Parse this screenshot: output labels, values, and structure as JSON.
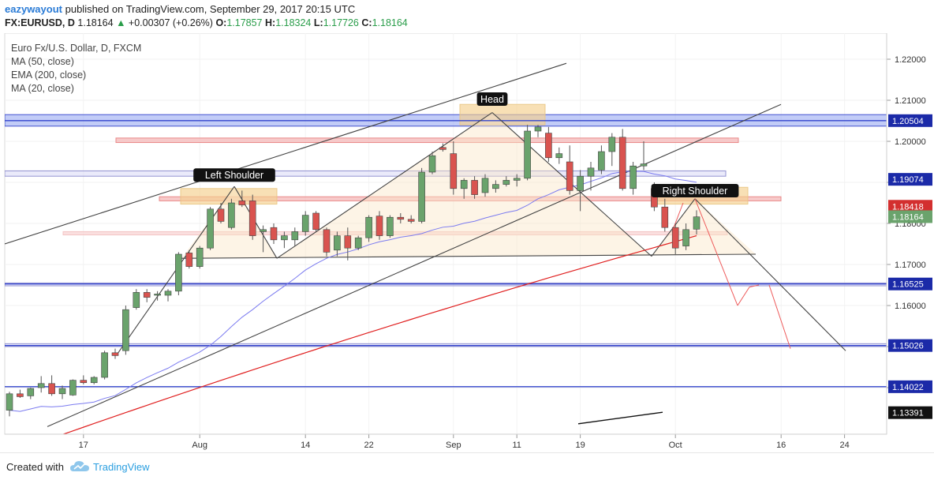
{
  "header": {
    "author": "eazywayout",
    "published_text": "published on TradingView.com, September 29, 2017 20:15 UTC",
    "symbol": "FX:EURUSD, D",
    "last": "1.18164",
    "change_arrow": "▲",
    "change": "+0.00307 (+0.26%)",
    "open_label": "O:",
    "open": "1.17857",
    "high_label": "H:",
    "high": "1.18324",
    "low_label": "L:",
    "low": "1.17726",
    "close_label": "C:",
    "close": "1.18164"
  },
  "footer": {
    "created_with": "Created with",
    "brand": "TradingView"
  },
  "colors": {
    "up": "#6aa36c",
    "down": "#d9534f",
    "ma50": "#7b7bf0",
    "ema200": "#e02020",
    "resistance_blue": "#3344cc",
    "zone_red": "#e88080",
    "zone_orange": "#e9c583"
  },
  "chart_data": {
    "type": "candlestick",
    "title": "Euro Fx/U.S. Dollar, D, FXCM",
    "indicators": [
      "MA (50, close)",
      "EMA (200, close)",
      "MA (20, close)"
    ],
    "ylim": [
      1.1296,
      1.2278
    ],
    "y_ticks": [
      1.22,
      1.21,
      1.2,
      1.19,
      1.18,
      1.17,
      1.16,
      1.15,
      1.14
    ],
    "x_ticks": [
      {
        "label": "17",
        "index": 7
      },
      {
        "label": "Aug",
        "index": 18
      },
      {
        "label": "14",
        "index": 28
      },
      {
        "label": "22",
        "index": 34
      },
      {
        "label": "Sep",
        "index": 42
      },
      {
        "label": "11",
        "index": 48
      },
      {
        "label": "19",
        "index": 54
      },
      {
        "label": "Oct",
        "index": 63
      },
      {
        "label": "16",
        "index": 73
      },
      {
        "label": "24",
        "index": 79
      }
    ],
    "price_labels": [
      {
        "value": 1.20504,
        "label": "1.20504",
        "color": "#1b2aa8"
      },
      {
        "value": 1.19074,
        "label": "1.19074",
        "color": "#1b2aa8"
      },
      {
        "value": 1.18418,
        "label": "1.18418",
        "color": "#d32f2f"
      },
      {
        "value": 1.18164,
        "label": "1.18164",
        "color": "#6aa36c"
      },
      {
        "value": 1.16525,
        "label": "1.16525",
        "color": "#1b2aa8"
      },
      {
        "value": 1.15026,
        "label": "1.15026",
        "color": "#1b2aa8"
      },
      {
        "value": 1.14022,
        "label": "1.14022",
        "color": "#1b2aa8"
      },
      {
        "value": 1.13391,
        "label": "1.13391",
        "color": "#111111"
      }
    ],
    "candles": [
      [
        1.1345,
        1.139,
        1.133,
        1.1385
      ],
      [
        1.1385,
        1.1395,
        1.1375,
        1.1378
      ],
      [
        1.138,
        1.14,
        1.1372,
        1.1398
      ],
      [
        1.14,
        1.1428,
        1.1388,
        1.141
      ],
      [
        1.141,
        1.143,
        1.138,
        1.1385
      ],
      [
        1.1385,
        1.1405,
        1.1372,
        1.1398
      ],
      [
        1.1382,
        1.142,
        1.138,
        1.1418
      ],
      [
        1.1418,
        1.143,
        1.1408,
        1.1412
      ],
      [
        1.1412,
        1.1428,
        1.1408,
        1.1425
      ],
      [
        1.1425,
        1.149,
        1.142,
        1.1485
      ],
      [
        1.1485,
        1.1495,
        1.147,
        1.1478
      ],
      [
        1.149,
        1.16,
        1.148,
        1.159
      ],
      [
        1.1595,
        1.164,
        1.159,
        1.1632
      ],
      [
        1.1632,
        1.164,
        1.1608,
        1.162
      ],
      [
        1.1625,
        1.1635,
        1.1612,
        1.1628
      ],
      [
        1.1625,
        1.164,
        1.161,
        1.1635
      ],
      [
        1.1635,
        1.173,
        1.1625,
        1.1725
      ],
      [
        1.1728,
        1.1735,
        1.169,
        1.1695
      ],
      [
        1.1695,
        1.1745,
        1.169,
        1.174
      ],
      [
        1.174,
        1.184,
        1.1735,
        1.1835
      ],
      [
        1.1835,
        1.185,
        1.18,
        1.1805
      ],
      [
        1.179,
        1.186,
        1.1785,
        1.185
      ],
      [
        1.1855,
        1.188,
        1.184,
        1.1845
      ],
      [
        1.1855,
        1.187,
        1.176,
        1.177
      ],
      [
        1.178,
        1.1795,
        1.173,
        1.1785
      ],
      [
        1.179,
        1.18,
        1.175,
        1.176
      ],
      [
        1.176,
        1.178,
        1.174,
        1.177
      ],
      [
        1.176,
        1.179,
        1.1745,
        1.178
      ],
      [
        1.178,
        1.183,
        1.177,
        1.182
      ],
      [
        1.1825,
        1.183,
        1.178,
        1.1785
      ],
      [
        1.1785,
        1.179,
        1.172,
        1.173
      ],
      [
        1.1735,
        1.178,
        1.172,
        1.177
      ],
      [
        1.177,
        1.179,
        1.171,
        1.174
      ],
      [
        1.174,
        1.177,
        1.1735,
        1.1765
      ],
      [
        1.1765,
        1.182,
        1.1755,
        1.1815
      ],
      [
        1.1818,
        1.183,
        1.176,
        1.177
      ],
      [
        1.177,
        1.182,
        1.1765,
        1.1815
      ],
      [
        1.1815,
        1.1825,
        1.18,
        1.181
      ],
      [
        1.181,
        1.182,
        1.18,
        1.1805
      ],
      [
        1.1805,
        1.1935,
        1.18,
        1.1925
      ],
      [
        1.1925,
        1.1975,
        1.192,
        1.1965
      ],
      [
        1.1985,
        1.1995,
        1.1975,
        1.198
      ],
      [
        1.197,
        1.2,
        1.187,
        1.1885
      ],
      [
        1.1885,
        1.191,
        1.186,
        1.1905
      ],
      [
        1.1905,
        1.1915,
        1.186,
        1.187
      ],
      [
        1.1875,
        1.192,
        1.1865,
        1.191
      ],
      [
        1.1885,
        1.1905,
        1.1875,
        1.1895
      ],
      [
        1.1895,
        1.1915,
        1.189,
        1.1905
      ],
      [
        1.1905,
        1.192,
        1.189,
        1.191
      ],
      [
        1.191,
        1.204,
        1.1905,
        1.2025
      ],
      [
        1.2025,
        1.204,
        1.201,
        1.2035
      ],
      [
        1.202,
        1.2035,
        1.195,
        1.196
      ],
      [
        1.196,
        1.1985,
        1.1945,
        1.197
      ],
      [
        1.195,
        1.199,
        1.187,
        1.188
      ],
      [
        1.188,
        1.193,
        1.183,
        1.1915
      ],
      [
        1.1915,
        1.195,
        1.188,
        1.1935
      ],
      [
        1.193,
        1.199,
        1.192,
        1.1975
      ],
      [
        1.1975,
        1.202,
        1.194,
        1.201
      ],
      [
        1.201,
        1.203,
        1.188,
        1.1885
      ],
      [
        1.1885,
        1.195,
        1.187,
        1.194
      ],
      [
        1.194,
        1.2,
        1.193,
        1.1945
      ],
      [
        1.1885,
        1.19,
        1.183,
        1.184
      ],
      [
        1.184,
        1.186,
        1.178,
        1.179
      ],
      [
        1.179,
        1.18,
        1.1725,
        1.174
      ],
      [
        1.1745,
        1.18,
        1.1735,
        1.1785
      ],
      [
        1.1786,
        1.1832,
        1.1773,
        1.1816
      ]
    ],
    "annotations": [
      "Head",
      "Left Shoulder",
      "Right Shoulder"
    ]
  }
}
